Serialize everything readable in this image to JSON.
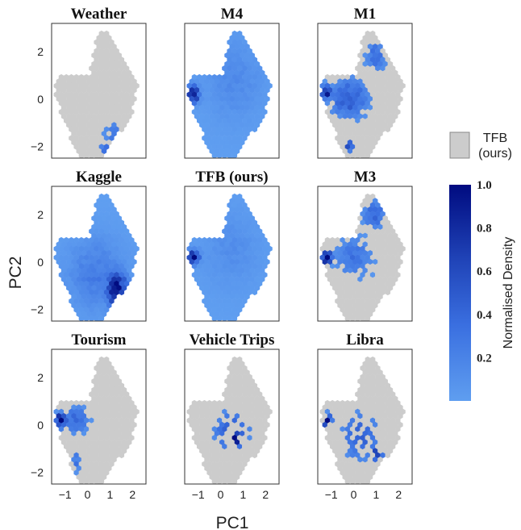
{
  "chart_data": {
    "type": "heatmap",
    "subtype": "hexbin-density-small-multiples",
    "xlabel": "PC1",
    "ylabel": "PC2",
    "xlim": [
      -1.6,
      2.6
    ],
    "ylim": [
      -2.5,
      3.2
    ],
    "xticks": [
      -1,
      0,
      1,
      2
    ],
    "yticks": [
      -2,
      0,
      2
    ],
    "background_label": "TFB\n(ours)",
    "background_color": "#cccccc",
    "colorbar": {
      "label": "Normalised Density",
      "ticks": [
        "0.2",
        "0.4",
        "0.6",
        "0.8",
        "1.0"
      ],
      "range": [
        0.0,
        1.0
      ],
      "colors": [
        "#5f9ef0",
        "#3a6fe0",
        "#2044b8",
        "#000b80"
      ]
    },
    "panels": [
      {
        "title": "Weather",
        "row": 0,
        "col": 0,
        "coverage": "low",
        "regions": [
          {
            "center": [
              1.2,
              -1.5
            ],
            "spread": [
              0.55,
              0.6
            ],
            "density": 0.3
          },
          {
            "center": [
              1.0,
              -2.1
            ],
            "spread": [
              0.5,
              0.25
            ],
            "density": 0.45
          }
        ]
      },
      {
        "title": "M4",
        "row": 0,
        "col": 1,
        "coverage": "full",
        "regions": [
          {
            "center": [
              -1.2,
              0.2
            ],
            "spread": [
              0.25,
              0.35
            ],
            "density": 1.0
          },
          {
            "center": [
              0.6,
              0.8
            ],
            "spread": [
              1.2,
              1.6
            ],
            "density": 0.15
          }
        ]
      },
      {
        "title": "M1",
        "row": 0,
        "col": 2,
        "coverage": "partial",
        "regions": [
          {
            "center": [
              -1.2,
              0.3
            ],
            "spread": [
              0.25,
              0.3
            ],
            "density": 1.0
          },
          {
            "center": [
              -0.2,
              0.0
            ],
            "spread": [
              0.9,
              0.9
            ],
            "density": 0.45
          },
          {
            "center": [
              1.0,
              1.8
            ],
            "spread": [
              0.5,
              0.8
            ],
            "density": 0.35
          },
          {
            "center": [
              -0.2,
              -2.0
            ],
            "spread": [
              0.2,
              0.2
            ],
            "density": 0.7
          }
        ]
      },
      {
        "title": "Kaggle",
        "row": 1,
        "col": 0,
        "coverage": "full",
        "regions": [
          {
            "center": [
              1.3,
              -1.2
            ],
            "spread": [
              0.45,
              0.8
            ],
            "density": 0.9
          },
          {
            "center": [
              0.4,
              -0.5
            ],
            "spread": [
              1.2,
              1.4
            ],
            "density": 0.25
          }
        ]
      },
      {
        "title": "TFB (ours)",
        "row": 1,
        "col": 1,
        "coverage": "full",
        "regions": [
          {
            "center": [
              -1.2,
              0.2
            ],
            "spread": [
              0.25,
              0.3
            ],
            "density": 0.95
          },
          {
            "center": [
              0.5,
              0.5
            ],
            "spread": [
              1.2,
              1.5
            ],
            "density": 0.12
          }
        ]
      },
      {
        "title": "M3",
        "row": 1,
        "col": 2,
        "coverage": "partial",
        "regions": [
          {
            "center": [
              -1.2,
              0.2
            ],
            "spread": [
              0.25,
              0.3
            ],
            "density": 1.0
          },
          {
            "center": [
              0.0,
              0.2
            ],
            "spread": [
              1.0,
              1.0
            ],
            "density": 0.3
          },
          {
            "center": [
              0.9,
              2.0
            ],
            "spread": [
              0.5,
              0.6
            ],
            "density": 0.45
          }
        ]
      },
      {
        "title": "Tourism",
        "row": 2,
        "col": 0,
        "coverage": "partial",
        "regions": [
          {
            "center": [
              -1.2,
              0.2
            ],
            "spread": [
              0.25,
              0.3
            ],
            "density": 1.0
          },
          {
            "center": [
              -0.5,
              0.2
            ],
            "spread": [
              0.6,
              0.6
            ],
            "density": 0.4
          },
          {
            "center": [
              -0.5,
              -1.5
            ],
            "spread": [
              0.2,
              0.5
            ],
            "density": 0.35
          }
        ]
      },
      {
        "title": "Vehicle Trips",
        "row": 2,
        "col": 1,
        "coverage": "sparse",
        "regions": [
          {
            "center": [
              0.7,
              -0.6
            ],
            "spread": [
              0.3,
              0.3
            ],
            "density": 1.0
          },
          {
            "center": [
              0.5,
              -0.3
            ],
            "spread": [
              0.7,
              0.8
            ],
            "density": 0.5
          }
        ]
      },
      {
        "title": "Libra",
        "row": 2,
        "col": 2,
        "coverage": "sparse",
        "regions": [
          {
            "center": [
              -1.2,
              0.2
            ],
            "spread": [
              0.2,
              0.25
            ],
            "density": 1.0
          },
          {
            "center": [
              1.0,
              -1.2
            ],
            "spread": [
              0.3,
              0.3
            ],
            "density": 0.7
          },
          {
            "center": [
              0.3,
              -0.5
            ],
            "spread": [
              0.8,
              1.0
            ],
            "density": 0.4
          }
        ]
      }
    ]
  }
}
